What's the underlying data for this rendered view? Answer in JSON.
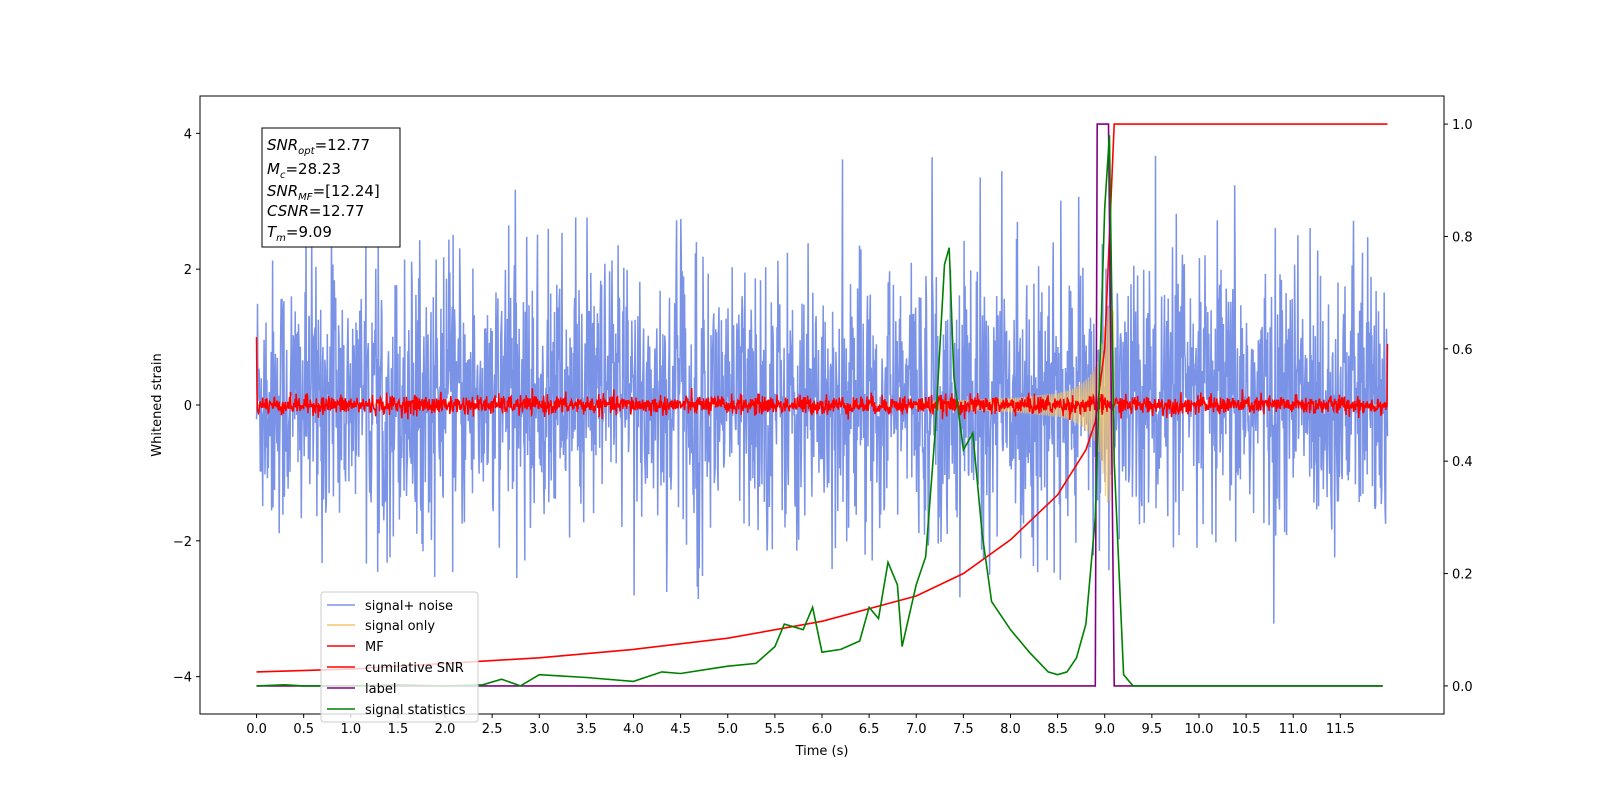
{
  "chart_data": {
    "type": "line",
    "xlabel": "Time (s)",
    "ylabel": "Whitened strain",
    "xlim": [
      -0.6,
      12.6
    ],
    "ylim_left": [
      -4.55,
      4.55
    ],
    "ylim_right": [
      -0.05,
      1.05
    ],
    "x_ticks": [
      "0.0",
      "0.5",
      "1.0",
      "1.5",
      "2.0",
      "2.5",
      "3.0",
      "3.5",
      "4.0",
      "4.5",
      "5.0",
      "5.5",
      "6.0",
      "6.5",
      "7.0",
      "7.5",
      "8.0",
      "8.5",
      "9.0",
      "9.5",
      "10.0",
      "10.5",
      "11.0",
      "11.5"
    ],
    "y_ticks_left": [
      "4",
      "2",
      "0",
      "−2",
      "−4"
    ],
    "y_ticks_right": [
      "1.0",
      "0.8",
      "0.6",
      "0.4",
      "0.2",
      "0.0"
    ],
    "legend_position": "lower-left",
    "info_box": {
      "snr_opt": {
        "base": "SNR",
        "sub": "opt",
        "value": "=12.77"
      },
      "mc": {
        "base": "M",
        "sub": "c",
        "value": "=28.23"
      },
      "snr_mf": {
        "base": "SNR",
        "sub": "MF",
        "value": "=[12.24]"
      },
      "csnr": {
        "base": "CSNR",
        "sub": "",
        "value": "=12.77"
      },
      "tm": {
        "base": "T",
        "sub": "m",
        "value": "=9.09"
      }
    },
    "series": [
      {
        "name": "signal+ noise",
        "color": "#7b93e6",
        "axis": "left",
        "approx": "gaussian noise, sd ~1.0, mean ~0.1, spikes up to ~4.2 and down to ~-3.9, t 0.0-12.0"
      },
      {
        "name": "signal only",
        "color": "#f5c46a",
        "axis": "left",
        "approx": "chirp growing from ~0 at t=7.5 to amplitude ~1.5 at t=9.05, then ~0"
      },
      {
        "name": "MF",
        "color": "#ff0000",
        "axis": "left",
        "approx": "noise band, sd ~0.07, around 0, edge values ~1.0 at t=0 and ~0.9 at t=12"
      },
      {
        "name": "cumilative SNR",
        "color": "#ff0000",
        "axis": "right",
        "x": [
          0.0,
          1.0,
          2.0,
          3.0,
          4.0,
          5.0,
          6.0,
          7.0,
          7.5,
          8.0,
          8.5,
          8.8,
          8.9,
          9.0,
          9.05,
          9.1,
          12.0
        ],
        "y": [
          0.025,
          0.03,
          0.04,
          0.05,
          0.065,
          0.085,
          0.115,
          0.16,
          0.2,
          0.26,
          0.34,
          0.42,
          0.47,
          0.6,
          0.8,
          1.0,
          1.0
        ]
      },
      {
        "name": "label",
        "color": "#800080",
        "axis": "right",
        "x": [
          0.0,
          8.9,
          8.92,
          9.04,
          9.1,
          11.95
        ],
        "y": [
          0.0,
          0.0,
          1.0,
          1.0,
          0.0,
          0.0
        ]
      },
      {
        "name": "signal statistics",
        "color": "#008000",
        "axis": "right",
        "x": [
          0.0,
          0.3,
          0.5,
          1.0,
          1.5,
          2.0,
          2.4,
          2.6,
          2.8,
          3.0,
          3.2,
          3.5,
          4.0,
          4.3,
          4.5,
          4.8,
          5.0,
          5.3,
          5.5,
          5.6,
          5.8,
          5.9,
          6.0,
          6.2,
          6.4,
          6.5,
          6.6,
          6.7,
          6.8,
          6.85,
          7.0,
          7.1,
          7.2,
          7.3,
          7.35,
          7.4,
          7.5,
          7.6,
          7.7,
          7.8,
          8.0,
          8.2,
          8.4,
          8.5,
          8.6,
          8.7,
          8.8,
          8.9,
          9.0,
          9.05,
          9.1,
          9.2,
          9.3,
          9.5,
          10.0,
          11.0,
          11.95
        ],
        "y": [
          0.0,
          0.002,
          0.0,
          0.0,
          0.002,
          0.0,
          0.002,
          0.012,
          0.0,
          0.02,
          0.018,
          0.015,
          0.008,
          0.025,
          0.022,
          0.03,
          0.035,
          0.04,
          0.07,
          0.11,
          0.1,
          0.14,
          0.06,
          0.065,
          0.08,
          0.14,
          0.12,
          0.22,
          0.18,
          0.07,
          0.18,
          0.23,
          0.45,
          0.75,
          0.78,
          0.55,
          0.42,
          0.45,
          0.27,
          0.15,
          0.1,
          0.06,
          0.025,
          0.02,
          0.025,
          0.05,
          0.11,
          0.3,
          0.85,
          0.98,
          0.4,
          0.02,
          0.0,
          0.0,
          0.0,
          0.0,
          0.0
        ]
      }
    ]
  }
}
